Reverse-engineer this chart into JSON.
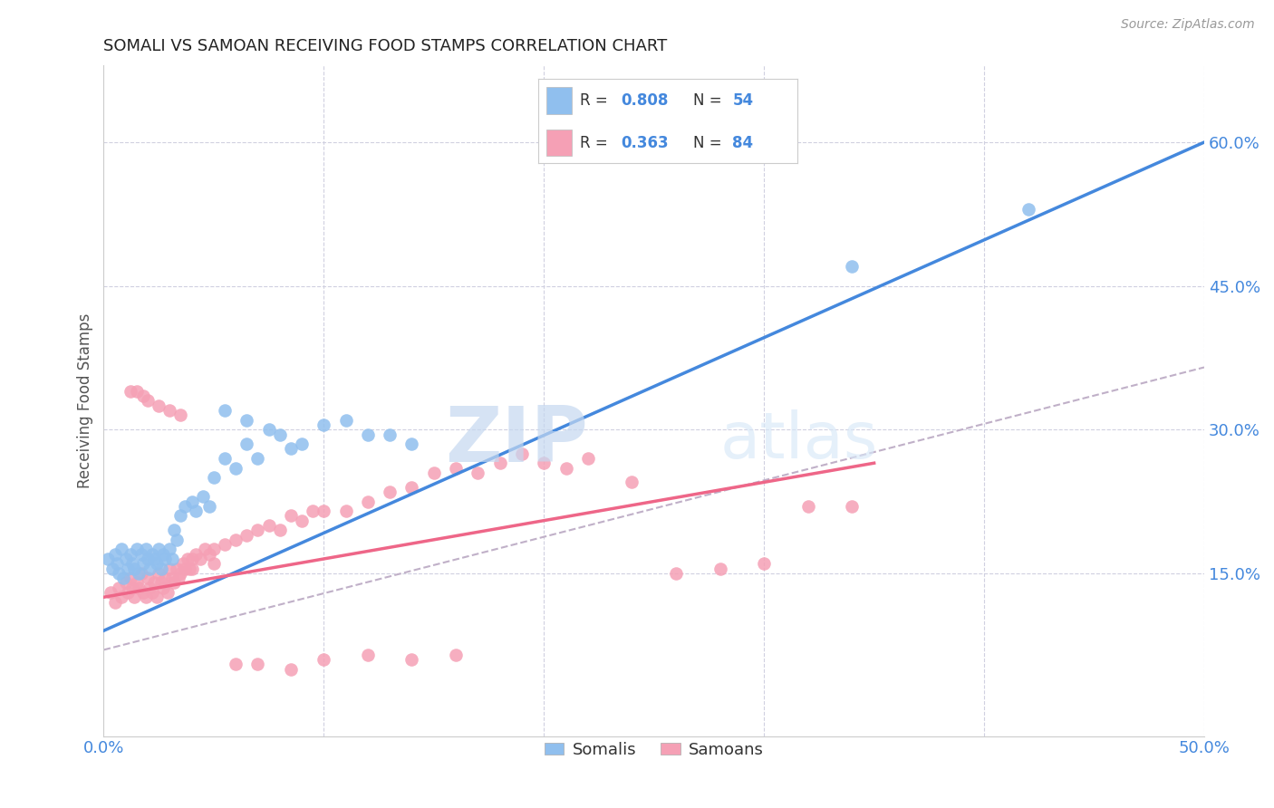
{
  "title": "SOMALI VS SAMOAN RECEIVING FOOD STAMPS CORRELATION CHART",
  "source": "Source: ZipAtlas.com",
  "ylabel": "Receiving Food Stamps",
  "watermark_zip": "ZIP",
  "watermark_atlas": "atlas",
  "xlim": [
    0.0,
    0.5
  ],
  "ylim": [
    -0.02,
    0.68
  ],
  "ytick_labels": [
    "15.0%",
    "30.0%",
    "45.0%",
    "60.0%"
  ],
  "ytick_values": [
    0.15,
    0.3,
    0.45,
    0.6
  ],
  "somali_R": "0.808",
  "somali_N": "54",
  "samoan_R": "0.363",
  "samoan_N": "84",
  "somali_color": "#90bfee",
  "samoan_color": "#f5a0b5",
  "somali_line_color": "#4488dd",
  "samoan_line_color": "#ee6688",
  "dashed_line_color": "#c0b0c8",
  "legend_label_somali": "Somalis",
  "legend_label_samoan": "Samoans",
  "background_color": "#ffffff",
  "grid_color": "#d0d0e0",
  "title_color": "#222222",
  "axis_label_color": "#4488dd",
  "somali_x": [
    0.002,
    0.004,
    0.005,
    0.006,
    0.007,
    0.008,
    0.009,
    0.01,
    0.011,
    0.012,
    0.013,
    0.014,
    0.015,
    0.016,
    0.017,
    0.018,
    0.019,
    0.02,
    0.021,
    0.022,
    0.023,
    0.024,
    0.025,
    0.026,
    0.027,
    0.028,
    0.03,
    0.031,
    0.032,
    0.033,
    0.035,
    0.037,
    0.04,
    0.042,
    0.045,
    0.048,
    0.05,
    0.055,
    0.06,
    0.065,
    0.07,
    0.08,
    0.09,
    0.1,
    0.11,
    0.12,
    0.13,
    0.14,
    0.055,
    0.065,
    0.075,
    0.085,
    0.34,
    0.42
  ],
  "somali_y": [
    0.165,
    0.155,
    0.17,
    0.16,
    0.15,
    0.175,
    0.145,
    0.165,
    0.155,
    0.17,
    0.16,
    0.155,
    0.175,
    0.15,
    0.17,
    0.16,
    0.175,
    0.165,
    0.155,
    0.17,
    0.165,
    0.16,
    0.175,
    0.155,
    0.17,
    0.165,
    0.175,
    0.165,
    0.195,
    0.185,
    0.21,
    0.22,
    0.225,
    0.215,
    0.23,
    0.22,
    0.25,
    0.27,
    0.26,
    0.285,
    0.27,
    0.295,
    0.285,
    0.305,
    0.31,
    0.295,
    0.295,
    0.285,
    0.32,
    0.31,
    0.3,
    0.28,
    0.47,
    0.53
  ],
  "samoan_x": [
    0.003,
    0.005,
    0.007,
    0.008,
    0.01,
    0.011,
    0.012,
    0.013,
    0.014,
    0.015,
    0.016,
    0.017,
    0.018,
    0.019,
    0.02,
    0.021,
    0.022,
    0.023,
    0.024,
    0.025,
    0.026,
    0.027,
    0.028,
    0.029,
    0.03,
    0.031,
    0.032,
    0.033,
    0.034,
    0.035,
    0.036,
    0.037,
    0.038,
    0.039,
    0.04,
    0.042,
    0.044,
    0.046,
    0.048,
    0.05,
    0.055,
    0.06,
    0.065,
    0.07,
    0.075,
    0.08,
    0.085,
    0.09,
    0.095,
    0.1,
    0.11,
    0.12,
    0.13,
    0.14,
    0.15,
    0.16,
    0.17,
    0.18,
    0.19,
    0.2,
    0.21,
    0.22,
    0.24,
    0.26,
    0.28,
    0.3,
    0.32,
    0.34,
    0.012,
    0.015,
    0.018,
    0.02,
    0.025,
    0.03,
    0.035,
    0.04,
    0.05,
    0.06,
    0.07,
    0.085,
    0.1,
    0.12,
    0.14,
    0.16
  ],
  "samoan_y": [
    0.13,
    0.12,
    0.135,
    0.125,
    0.14,
    0.13,
    0.145,
    0.135,
    0.125,
    0.14,
    0.135,
    0.15,
    0.13,
    0.125,
    0.145,
    0.135,
    0.13,
    0.14,
    0.125,
    0.15,
    0.14,
    0.135,
    0.145,
    0.13,
    0.155,
    0.145,
    0.14,
    0.155,
    0.145,
    0.15,
    0.16,
    0.155,
    0.165,
    0.155,
    0.165,
    0.17,
    0.165,
    0.175,
    0.17,
    0.175,
    0.18,
    0.185,
    0.19,
    0.195,
    0.2,
    0.195,
    0.21,
    0.205,
    0.215,
    0.215,
    0.215,
    0.225,
    0.235,
    0.24,
    0.255,
    0.26,
    0.255,
    0.265,
    0.275,
    0.265,
    0.26,
    0.27,
    0.245,
    0.15,
    0.155,
    0.16,
    0.22,
    0.22,
    0.34,
    0.34,
    0.335,
    0.33,
    0.325,
    0.32,
    0.315,
    0.155,
    0.16,
    0.055,
    0.055,
    0.05,
    0.06,
    0.065,
    0.06,
    0.065
  ]
}
